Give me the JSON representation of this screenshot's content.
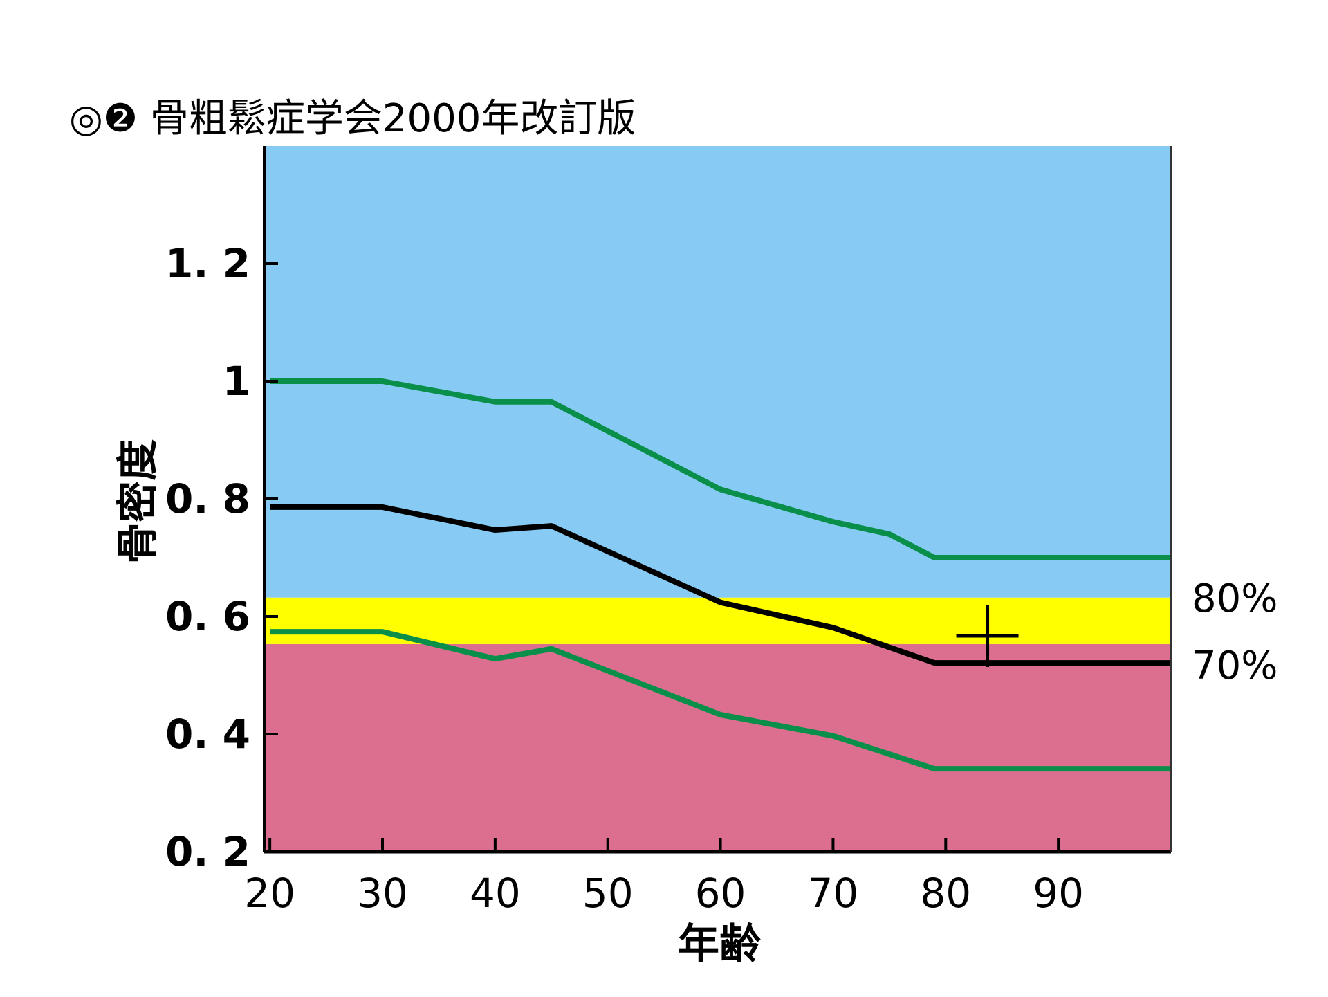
{
  "chart_data": {
    "type": "line",
    "title": "◎❷ 骨粗鬆症学会2000年改訂版",
    "xlabel": "年齢",
    "ylabel": "骨密度",
    "xlim": [
      19.5,
      100
    ],
    "ylim": [
      0.2,
      1.4
    ],
    "x_ticks": [
      20,
      30,
      40,
      50,
      60,
      70,
      80,
      90
    ],
    "y_ticks": [
      0.2,
      0.4,
      0.6,
      0.8,
      1,
      1.2
    ],
    "y_tick_labels": [
      "0. 2",
      "0. 4",
      "0. 6",
      "0. 8",
      "1",
      "1. 2"
    ],
    "grid": false,
    "bands": [
      {
        "from": 0.632,
        "to": 1.4,
        "color": "#87cbf5"
      },
      {
        "from": 0.553,
        "to": 0.632,
        "color": "#ffff00"
      },
      {
        "from": 0.2,
        "to": 0.553,
        "color": "#dc6f90"
      }
    ],
    "band_labels": [
      {
        "text": "80%",
        "y": 0.632
      },
      {
        "text": "70%",
        "y": 0.553
      }
    ],
    "series": [
      {
        "color": "#0a8f4a",
        "x": [
          20,
          30,
          40,
          45,
          60,
          70,
          75,
          79,
          100
        ],
        "y": [
          1.0,
          1.0,
          0.965,
          0.965,
          0.816,
          0.761,
          0.74,
          0.7,
          0.7
        ]
      },
      {
        "color": "#000000",
        "x": [
          20,
          30,
          40,
          45,
          60,
          70,
          79,
          100
        ],
        "y": [
          0.786,
          0.786,
          0.747,
          0.754,
          0.624,
          0.581,
          0.521,
          0.521
        ]
      },
      {
        "color": "#0a8f4a",
        "x": [
          20,
          30,
          40,
          45,
          60,
          70,
          79,
          100
        ],
        "y": [
          0.574,
          0.574,
          0.528,
          0.545,
          0.433,
          0.397,
          0.341,
          0.341
        ]
      }
    ],
    "marker": {
      "type": "cross",
      "x": 83.7,
      "y": 0.567,
      "color": "#000000"
    }
  }
}
